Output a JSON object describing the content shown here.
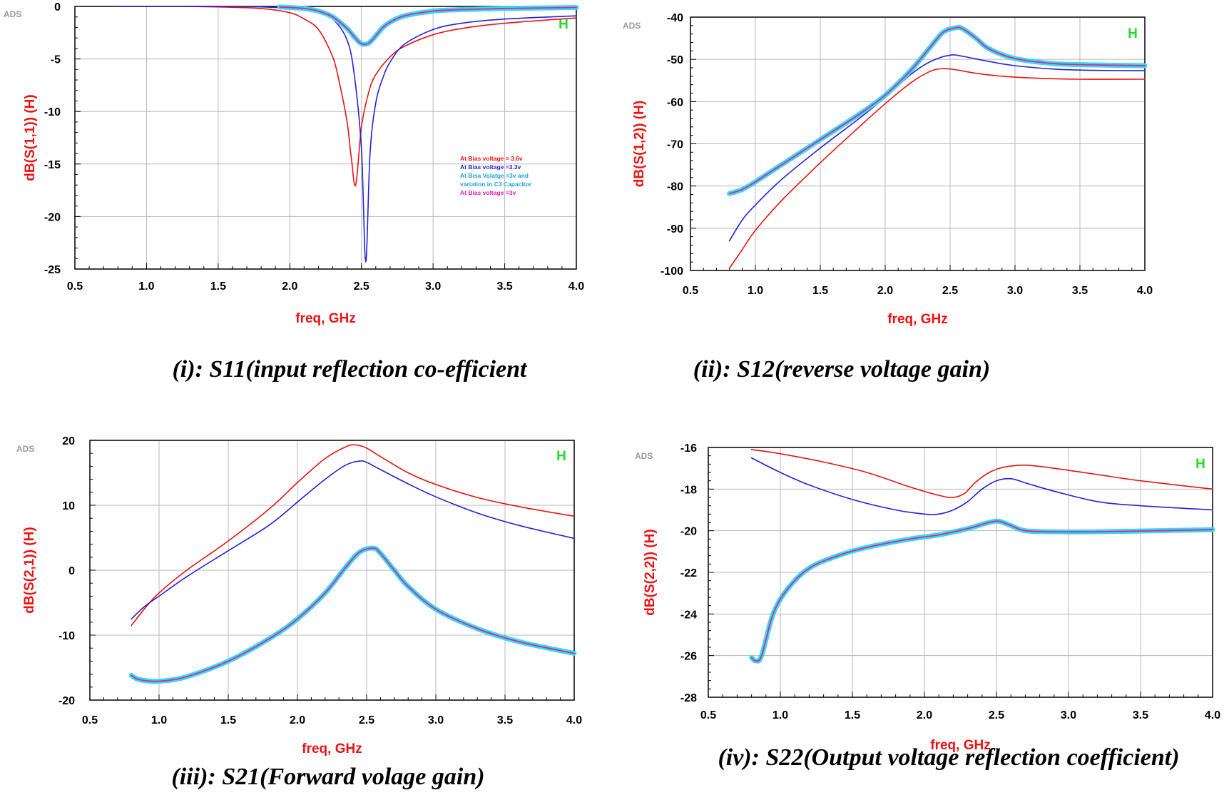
{
  "watermark": "ADS",
  "colors": {
    "bias_3_6v": "#ee1111",
    "bias_3_3v": "#2222dd",
    "bias_3v_c3_halo": "#33ddee",
    "bias_3v": "#dd22aa",
    "marker": "#22dd22",
    "axis_label": "#ee1111",
    "grid": "#b8b8b8"
  },
  "legend": [
    {
      "text": "At Bias voltage = 3.6v",
      "color": "#ee1111"
    },
    {
      "text": "At Bias voltage =3.3v",
      "color": "#2222dd"
    },
    {
      "text": "At Bisa Volatge =3v and",
      "color": "#1aa3e0"
    },
    {
      "text": "variation in C3 Capacitor",
      "color": "#1aa3e0"
    },
    {
      "text": "At Bias voltage =3v",
      "color": "#dd22aa"
    }
  ],
  "chart_data": [
    {
      "id": "s11",
      "type": "line",
      "caption": "(i): S11(input reflection co-efficient",
      "ylabel": "dB(S(1,1))  (H)",
      "xlabel": "freq, GHz",
      "marker": "H",
      "xlim": [
        0.5,
        4.0
      ],
      "ylim": [
        -25,
        0
      ],
      "xticks": [
        "0.5",
        "1.0",
        "1.5",
        "2.0",
        "2.5",
        "3.0",
        "3.5",
        "4.0"
      ],
      "yticks": [
        "0",
        "-5",
        "-10",
        "-15",
        "-20",
        "-25"
      ],
      "series": [
        {
          "name": "At Bias voltage = 3.6v",
          "x": [
            0.8,
            1.2,
            1.5,
            1.8,
            2.0,
            2.1,
            2.2,
            2.3,
            2.35,
            2.4,
            2.43,
            2.46,
            2.5,
            2.55,
            2.6,
            2.7,
            2.8,
            3.0,
            3.2,
            3.5,
            4.0
          ],
          "y": [
            0,
            0,
            -0.05,
            -0.2,
            -0.6,
            -1.2,
            -2.2,
            -4.8,
            -7.5,
            -11.0,
            -14.5,
            -17.0,
            -11.5,
            -8.2,
            -6.5,
            -4.8,
            -3.8,
            -2.7,
            -2.1,
            -1.6,
            -1.1
          ]
        },
        {
          "name": "At Bias voltage =3.3v",
          "x": [
            0.8,
            1.2,
            1.5,
            1.8,
            2.0,
            2.2,
            2.3,
            2.4,
            2.45,
            2.5,
            2.53,
            2.56,
            2.6,
            2.65,
            2.7,
            2.8,
            3.0,
            3.2,
            3.5,
            4.0
          ],
          "y": [
            0,
            0,
            0,
            -0.05,
            -0.2,
            -0.6,
            -1.2,
            -3.2,
            -6.5,
            -13.5,
            -24.3,
            -14.0,
            -9.2,
            -6.8,
            -5.3,
            -3.6,
            -2.2,
            -1.6,
            -1.2,
            -0.9
          ]
        },
        {
          "name": "At Bisa Volatge =3v and variation in C3 Capacitor",
          "x": [
            1.93,
            2.1,
            2.2,
            2.3,
            2.4,
            2.45,
            2.5,
            2.55,
            2.6,
            2.65,
            2.7,
            2.8,
            3.0,
            3.2,
            3.5,
            4.0
          ],
          "y": [
            -0.05,
            -0.2,
            -0.45,
            -1.0,
            -2.1,
            -2.9,
            -3.55,
            -3.5,
            -2.8,
            -2.0,
            -1.5,
            -0.9,
            -0.45,
            -0.3,
            -0.2,
            -0.1
          ]
        },
        {
          "name": "At Bias voltage =3v",
          "x": [
            1.93,
            2.1,
            2.2,
            2.3,
            2.4,
            2.45,
            2.5,
            2.55,
            2.6,
            2.65,
            2.7,
            2.8,
            3.0,
            3.2,
            3.5,
            4.0
          ],
          "y": [
            -0.05,
            -0.2,
            -0.45,
            -1.0,
            -2.1,
            -2.9,
            -3.55,
            -3.5,
            -2.8,
            -2.0,
            -1.5,
            -0.9,
            -0.45,
            -0.3,
            -0.2,
            -0.1
          ]
        }
      ]
    },
    {
      "id": "s12",
      "type": "line",
      "caption": "(ii):  S12(reverse voltage gain)",
      "ylabel": "dB(S(1,2))  (H)",
      "xlabel": "freq, GHz",
      "marker": "H",
      "xlim": [
        0.5,
        4.0
      ],
      "ylim": [
        -100,
        -40
      ],
      "xticks": [
        "0.5",
        "1.0",
        "1.5",
        "2.0",
        "2.5",
        "3.0",
        "3.5",
        "4.0"
      ],
      "yticks": [
        "-40",
        "-50",
        "-60",
        "-70",
        "-80",
        "-90",
        "-100"
      ],
      "series": [
        {
          "name": "At Bias voltage = 3.6v",
          "x": [
            0.8,
            0.9,
            1.0,
            1.2,
            1.5,
            1.8,
            2.0,
            2.2,
            2.35,
            2.45,
            2.55,
            2.7,
            2.9,
            3.2,
            3.5,
            4.0
          ],
          "y": [
            -99.5,
            -95,
            -90.5,
            -83.5,
            -74.5,
            -66,
            -60.5,
            -55.5,
            -52.8,
            -52.2,
            -52.5,
            -53.3,
            -54,
            -54.5,
            -54.7,
            -54.7
          ]
        },
        {
          "name": "At Bias voltage =3.3v",
          "x": [
            0.8,
            0.9,
            1.0,
            1.2,
            1.5,
            1.8,
            2.0,
            2.2,
            2.35,
            2.5,
            2.6,
            2.8,
            3.0,
            3.3,
            3.6,
            4.0
          ],
          "y": [
            -93,
            -88,
            -84.5,
            -78.5,
            -71,
            -64,
            -59,
            -53.5,
            -50.5,
            -49,
            -49.3,
            -50.5,
            -51.5,
            -52.3,
            -52.6,
            -52.7
          ]
        },
        {
          "name": "At Bisa Volatge =3v and variation in C3 Capacitor",
          "x": [
            0.8,
            0.9,
            1.0,
            1.2,
            1.5,
            1.8,
            2.0,
            2.2,
            2.35,
            2.45,
            2.55,
            2.6,
            2.7,
            2.8,
            3.0,
            3.3,
            3.6,
            4.0
          ],
          "y": [
            -81.8,
            -80.8,
            -79,
            -75,
            -69,
            -63,
            -58.5,
            -52.5,
            -47,
            -43.5,
            -42.5,
            -42.8,
            -45,
            -47.5,
            -49.8,
            -51,
            -51.3,
            -51.5
          ]
        },
        {
          "name": "At Bias voltage =3v",
          "x": [
            0.8,
            0.9,
            1.0,
            1.2,
            1.5,
            1.8,
            2.0,
            2.2,
            2.35,
            2.45,
            2.55,
            2.6,
            2.7,
            2.8,
            3.0,
            3.3,
            3.6,
            4.0
          ],
          "y": [
            -81.8,
            -80.8,
            -79,
            -75,
            -69,
            -63,
            -58.5,
            -52.5,
            -47,
            -43.5,
            -42.5,
            -42.8,
            -45,
            -47.5,
            -49.8,
            -51,
            -51.3,
            -51.5
          ]
        }
      ]
    },
    {
      "id": "s21",
      "type": "line",
      "caption": "(iii): S21(Forward volage gain)",
      "ylabel": "dB(S(2,1))  (H)",
      "xlabel": "freq, GHz",
      "marker": "H",
      "xlim": [
        0.5,
        4.0
      ],
      "ylim": [
        -20,
        20
      ],
      "xticks": [
        "0.5",
        "1.0",
        "1.5",
        "2.0",
        "2.5",
        "3.0",
        "3.5",
        "4.0"
      ],
      "yticks": [
        "20",
        "10",
        "0",
        "-10",
        "-20"
      ],
      "series": [
        {
          "name": "At Bias voltage = 3.6v",
          "x": [
            0.8,
            0.9,
            1.0,
            1.2,
            1.5,
            1.8,
            2.0,
            2.2,
            2.35,
            2.42,
            2.5,
            2.6,
            2.8,
            3.0,
            3.3,
            3.6,
            4.0
          ],
          "y": [
            -8.5,
            -5.8,
            -3.5,
            0,
            4.5,
            9.5,
            13.5,
            17.2,
            19,
            19.3,
            18.8,
            17.5,
            15,
            13.2,
            11.2,
            9.8,
            8.3
          ]
        },
        {
          "name": "At Bias voltage =3.3v",
          "x": [
            0.8,
            0.9,
            1.0,
            1.2,
            1.5,
            1.8,
            2.0,
            2.2,
            2.35,
            2.45,
            2.5,
            2.6,
            2.8,
            3.0,
            3.3,
            3.6,
            4.0
          ],
          "y": [
            -7.5,
            -5.5,
            -4,
            -1,
            3,
            7,
            10.5,
            14,
            16.2,
            16.8,
            16.6,
            15.5,
            13.3,
            11.3,
            8.8,
            6.9,
            4.9
          ]
        },
        {
          "name": "At Bisa Volatge =3v and variation in C3 Capacitor",
          "x": [
            0.8,
            0.85,
            0.95,
            1.05,
            1.2,
            1.5,
            1.8,
            2.0,
            2.2,
            2.35,
            2.45,
            2.55,
            2.6,
            2.7,
            2.8,
            3.0,
            3.3,
            3.6,
            4.0
          ],
          "y": [
            -16.2,
            -16.8,
            -17.1,
            -17,
            -16.4,
            -14,
            -10.5,
            -7.5,
            -3.5,
            0.5,
            2.8,
            3.4,
            2.6,
            0,
            -2.5,
            -6,
            -9,
            -11,
            -12.8
          ]
        },
        {
          "name": "At Bias voltage =3v",
          "x": [
            0.8,
            0.85,
            0.95,
            1.05,
            1.2,
            1.5,
            1.8,
            2.0,
            2.2,
            2.35,
            2.45,
            2.55,
            2.6,
            2.7,
            2.8,
            3.0,
            3.3,
            3.6,
            4.0
          ],
          "y": [
            -16.2,
            -16.8,
            -17.1,
            -17,
            -16.4,
            -14,
            -10.5,
            -7.5,
            -3.5,
            0.5,
            2.8,
            3.4,
            2.6,
            0,
            -2.5,
            -6,
            -9,
            -11,
            -12.8
          ]
        }
      ]
    },
    {
      "id": "s22",
      "type": "line",
      "caption": "(iv): S22(Output voltage reflection coefficient)",
      "ylabel": "dB(S(2,2))  (H)",
      "xlabel": "freq, GHz",
      "marker": "H",
      "xlim": [
        0.5,
        4.0
      ],
      "ylim": [
        -28,
        -16
      ],
      "xticks": [
        "0.5",
        "1.0",
        "1.5",
        "2.0",
        "2.5",
        "3.0",
        "3.5",
        "4.0"
      ],
      "yticks": [
        "-16",
        "-18",
        "-20",
        "-22",
        "-24",
        "-26",
        "-28"
      ],
      "series": [
        {
          "name": "At Bias voltage = 3.6v",
          "x": [
            0.8,
            1.0,
            1.3,
            1.6,
            1.9,
            2.1,
            2.2,
            2.28,
            2.35,
            2.45,
            2.55,
            2.7,
            2.9,
            3.2,
            3.5,
            4.0
          ],
          "y": [
            -16.1,
            -16.3,
            -16.7,
            -17.2,
            -17.9,
            -18.3,
            -18.4,
            -18.2,
            -17.7,
            -17.2,
            -16.95,
            -16.85,
            -17,
            -17.3,
            -17.6,
            -18
          ]
        },
        {
          "name": "At Bias voltage =3.3v",
          "x": [
            0.8,
            1.0,
            1.2,
            1.5,
            1.8,
            2.0,
            2.1,
            2.2,
            2.3,
            2.4,
            2.5,
            2.6,
            2.7,
            2.9,
            3.2,
            3.5,
            4.0
          ],
          "y": [
            -16.5,
            -17.2,
            -17.8,
            -18.5,
            -19,
            -19.2,
            -19.2,
            -19,
            -18.6,
            -18,
            -17.6,
            -17.5,
            -17.7,
            -18.1,
            -18.6,
            -18.8,
            -19
          ]
        },
        {
          "name": "At Bisa Volatge =3v and variation in C3 Capacitor",
          "x": [
            0.8,
            0.83,
            0.87,
            0.95,
            1.05,
            1.2,
            1.4,
            1.6,
            1.9,
            2.1,
            2.3,
            2.45,
            2.52,
            2.6,
            2.7,
            2.9,
            3.2,
            3.6,
            4.0
          ],
          "y": [
            -26.1,
            -26.25,
            -26,
            -24,
            -22.8,
            -21.8,
            -21.2,
            -20.8,
            -20.4,
            -20.2,
            -19.9,
            -19.6,
            -19.55,
            -19.75,
            -20,
            -20.05,
            -20.05,
            -20,
            -19.95
          ]
        },
        {
          "name": "At Bias voltage =3v",
          "x": [
            0.8,
            0.83,
            0.87,
            0.95,
            1.05,
            1.2,
            1.4,
            1.6,
            1.9,
            2.1,
            2.3,
            2.45,
            2.52,
            2.6,
            2.7,
            2.9,
            3.2,
            3.6,
            4.0
          ],
          "y": [
            -26.1,
            -26.25,
            -26,
            -24,
            -22.8,
            -21.8,
            -21.2,
            -20.8,
            -20.4,
            -20.2,
            -19.9,
            -19.6,
            -19.55,
            -19.75,
            -20,
            -20.05,
            -20.05,
            -20,
            -19.95
          ]
        }
      ]
    }
  ]
}
